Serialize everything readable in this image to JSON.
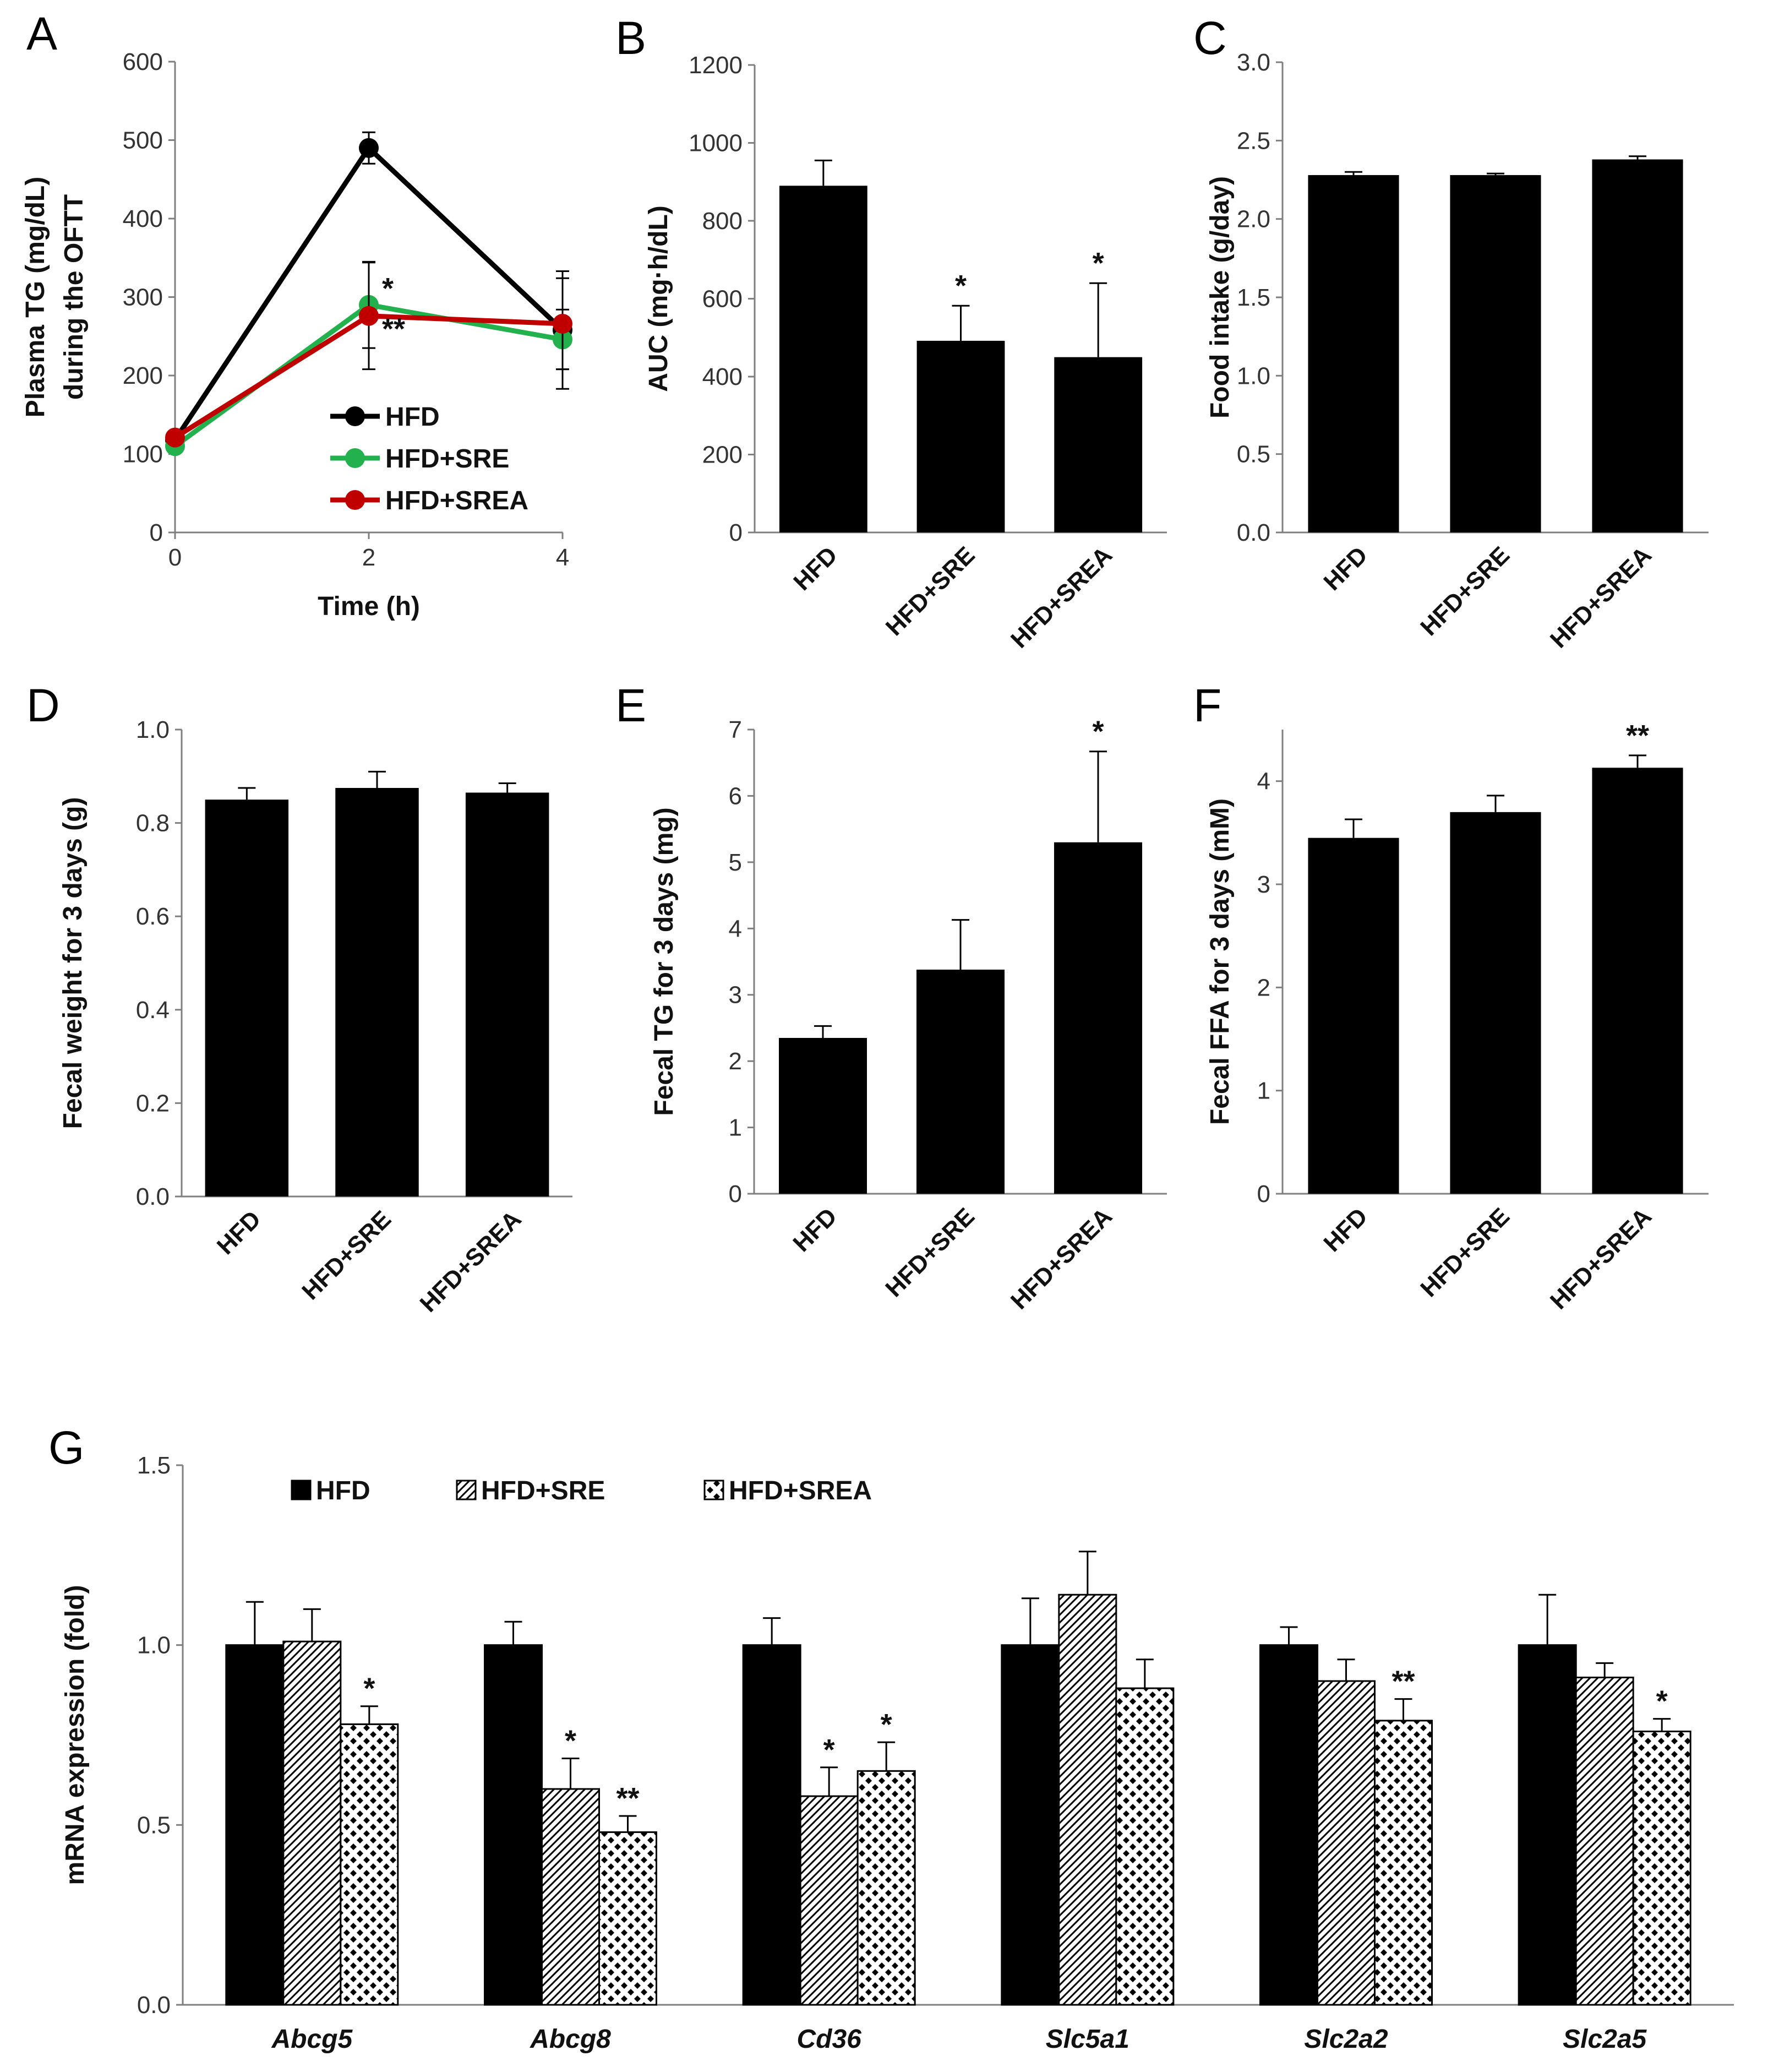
{
  "colors": {
    "bar": "#000000",
    "HFD": "#000000",
    "HFD+SRE": "#22b14c",
    "HFD+SREA": "#c00000"
  },
  "chart_data": [
    {
      "panel": "A",
      "type": "line",
      "xlabel": "Time (h)",
      "ylabel": "Plasma TG (mg/dL)",
      "ylabel2": "during the OFTT",
      "xticks": [
        "0",
        "2",
        "4"
      ],
      "ylim": [
        0,
        600
      ],
      "yticks": [
        "0",
        "100",
        "200",
        "300",
        "400",
        "500",
        "600"
      ],
      "legend_position": "bottom-center",
      "x": [
        0,
        2,
        4
      ],
      "series": [
        {
          "name": "HFD",
          "values": [
            118,
            490,
            258
          ],
          "errors": [
            8,
            20,
            75
          ],
          "sig": [
            "",
            "",
            ""
          ]
        },
        {
          "name": "HFD+SRE",
          "values": [
            110,
            290,
            246
          ],
          "errors": [
            6,
            55,
            38
          ],
          "sig": [
            "",
            "*",
            ""
          ]
        },
        {
          "name": "HFD+SREA",
          "values": [
            121,
            276,
            266
          ],
          "errors": [
            6,
            68,
            58
          ],
          "sig": [
            "",
            "**",
            ""
          ]
        }
      ]
    },
    {
      "panel": "B",
      "type": "bar",
      "ylabel": "AUC (mg·h/dL)",
      "categories": [
        "HFD",
        "HFD+SRE",
        "HFD+SREA"
      ],
      "ylim": [
        0,
        1200
      ],
      "yticks": [
        "0",
        "200",
        "400",
        "600",
        "800",
        "1000",
        "1200"
      ],
      "values": [
        890,
        492,
        450
      ],
      "errors": [
        65,
        90,
        190
      ],
      "sig": [
        "",
        "*",
        "*"
      ]
    },
    {
      "panel": "C",
      "type": "bar",
      "ylabel": "Food intake (g/day)",
      "categories": [
        "HFD",
        "HFD+SRE",
        "HFD+SREA"
      ],
      "ylim": [
        0,
        3.0
      ],
      "yticks": [
        "0.0",
        "0.5",
        "1.0",
        "1.5",
        "2.0",
        "2.5",
        "3.0"
      ],
      "values": [
        2.28,
        2.28,
        2.38
      ],
      "errors": [
        0.02,
        0.01,
        0.02
      ],
      "sig": [
        "",
        "",
        ""
      ]
    },
    {
      "panel": "D",
      "type": "bar",
      "ylabel": "Fecal weight for 3 days (g)",
      "categories": [
        "HFD",
        "HFD+SRE",
        "HFD+SREA"
      ],
      "ylim": [
        0,
        1.0
      ],
      "yticks": [
        "0.0",
        "0.2",
        "0.4",
        "0.6",
        "0.8",
        "1.0"
      ],
      "values": [
        0.85,
        0.875,
        0.865
      ],
      "errors": [
        0.025,
        0.035,
        0.02
      ],
      "sig": [
        "",
        "",
        ""
      ]
    },
    {
      "panel": "E",
      "type": "bar",
      "ylabel": "Fecal TG for 3 days (mg)",
      "categories": [
        "HFD",
        "HFD+SRE",
        "HFD+SREA"
      ],
      "ylim": [
        0,
        7
      ],
      "yticks": [
        "0",
        "1",
        "2",
        "3",
        "4",
        "5",
        "6",
        "7"
      ],
      "values": [
        2.35,
        3.38,
        5.3
      ],
      "errors": [
        0.18,
        0.75,
        1.37
      ],
      "sig": [
        "",
        "",
        "*"
      ]
    },
    {
      "panel": "F",
      "type": "bar",
      "ylabel": "Fecal FFA for 3 days (mM)",
      "categories": [
        "HFD",
        "HFD+SRE",
        "HFD+SREA"
      ],
      "ylim": [
        0,
        4.5
      ],
      "yticks": [
        "0",
        "1",
        "2",
        "3",
        "4"
      ],
      "values": [
        3.45,
        3.7,
        4.13
      ],
      "errors": [
        0.18,
        0.16,
        0.12
      ],
      "sig": [
        "",
        "",
        "**"
      ]
    },
    {
      "panel": "G",
      "type": "bar",
      "ylabel": "mRNA expression (fold)",
      "categories": [
        "Abcg5",
        "Abcg8",
        "Cd36",
        "Slc5a1",
        "Slc2a2",
        "Slc2a5"
      ],
      "ylim": [
        0,
        1.5
      ],
      "yticks": [
        "0.0",
        "0.5",
        "1.0",
        "1.5"
      ],
      "legend_position": "top-left",
      "series": [
        {
          "name": "HFD",
          "values": [
            1.0,
            1.0,
            1.0,
            1.0,
            1.0,
            1.0
          ],
          "errors": [
            0.12,
            0.065,
            0.075,
            0.13,
            0.05,
            0.14
          ],
          "sig": [
            "",
            "",
            "",
            "",
            "",
            ""
          ]
        },
        {
          "name": "HFD+SRE",
          "values": [
            1.01,
            0.6,
            0.58,
            1.14,
            0.9,
            0.91
          ],
          "errors": [
            0.09,
            0.085,
            0.08,
            0.12,
            0.06,
            0.04
          ],
          "sig": [
            "",
            "*",
            "*",
            "",
            "",
            ""
          ]
        },
        {
          "name": "HFD+SREA",
          "values": [
            0.78,
            0.48,
            0.65,
            0.88,
            0.79,
            0.76
          ],
          "errors": [
            0.05,
            0.045,
            0.08,
            0.08,
            0.06,
            0.035
          ],
          "sig": [
            "*",
            "**",
            "*",
            "",
            "**",
            "*"
          ]
        }
      ]
    }
  ]
}
